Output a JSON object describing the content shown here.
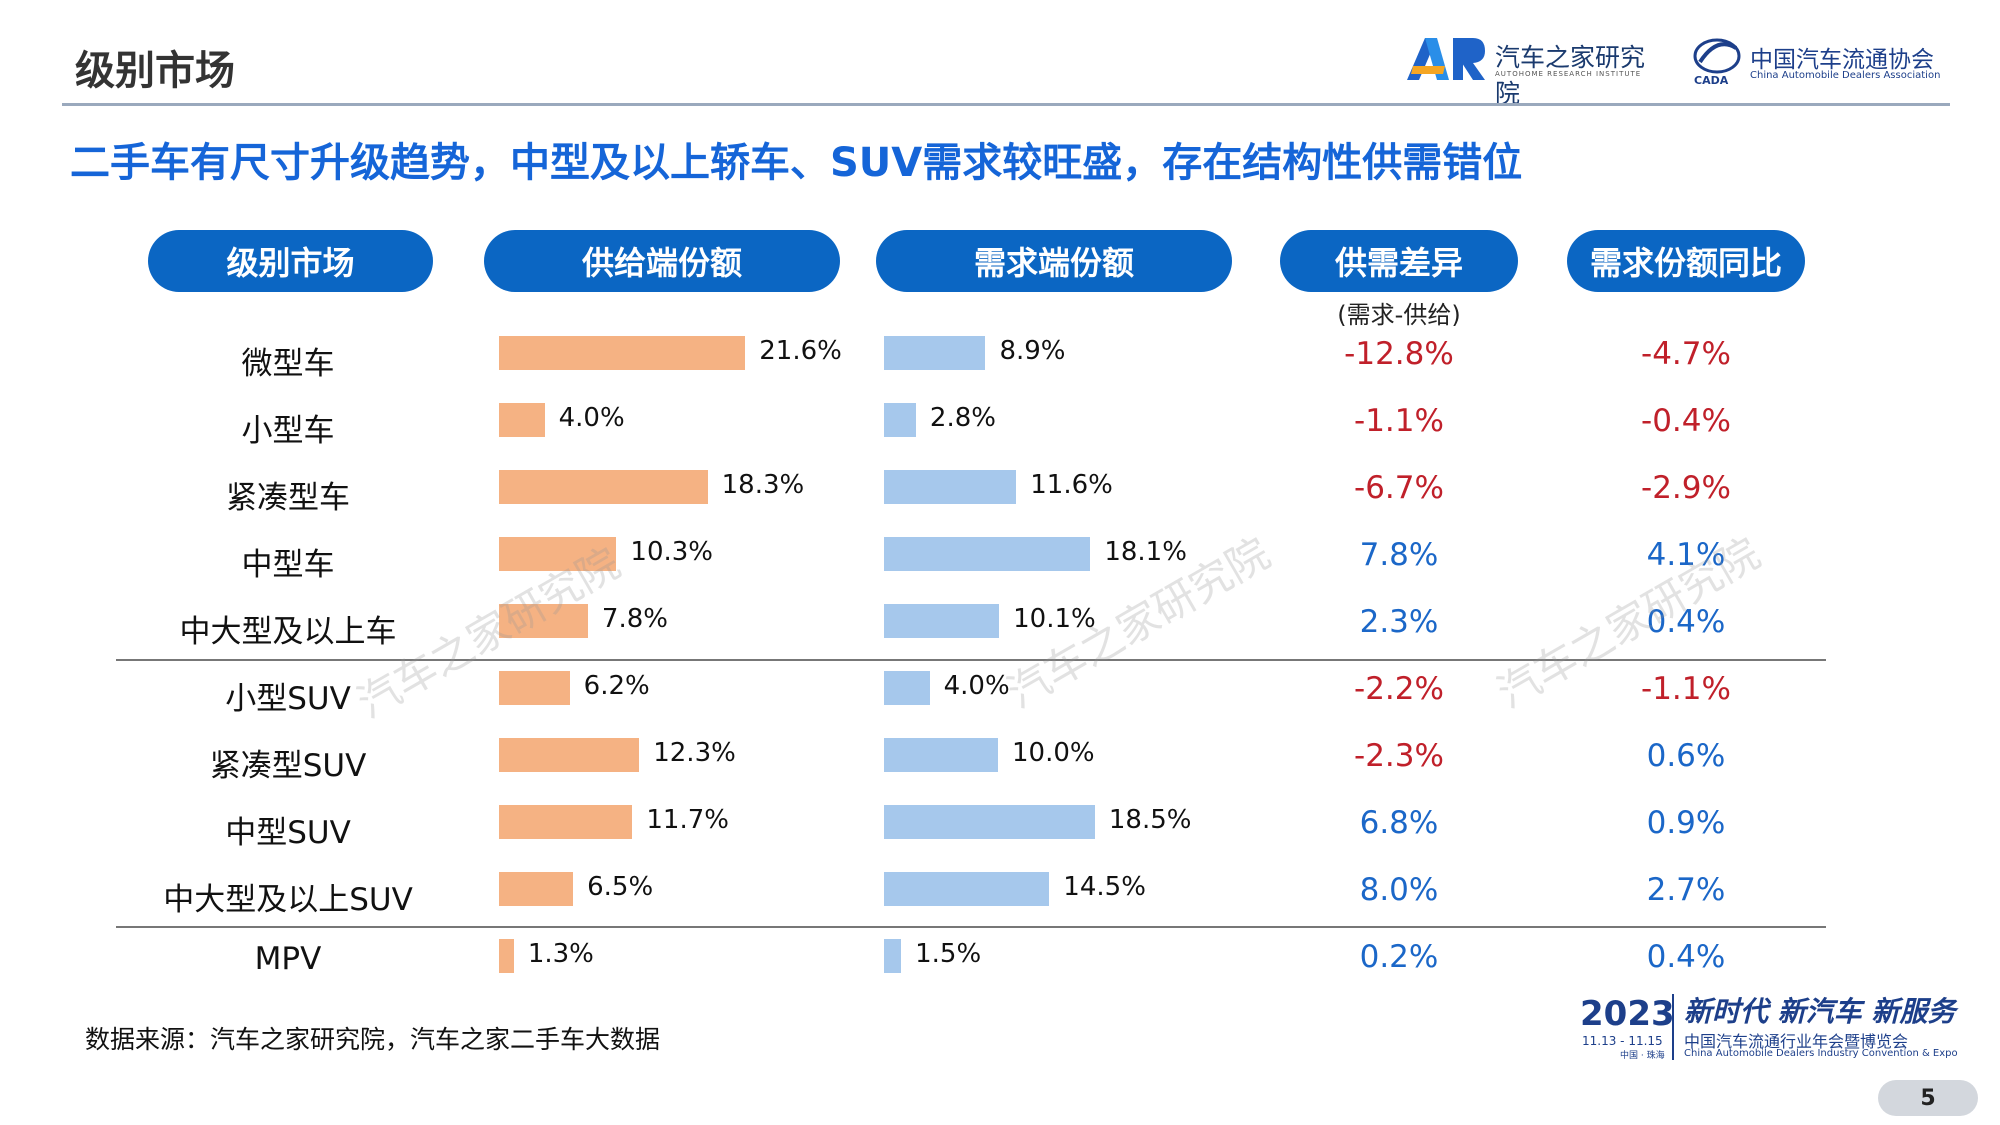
{
  "header": {
    "page_title": "级别市场",
    "logo_ar_text": "汽车之家研究院",
    "logo_ar_sub": "AUTOHOME RESEARCH INSTITUTE",
    "logo_cada_cn": "中国汽车流通协会",
    "logo_cada_en": "China Automobile Dealers Association"
  },
  "subtitle": "二手车有尺寸升级趋势，中型及以上轿车、SUV需求较旺盛，存在结构性供需错位",
  "columns": {
    "segment": "级别市场",
    "supply": "供给端份额",
    "demand": "需求端份额",
    "gap": "供需差异",
    "gap_note": "(需求-供给)",
    "demand_yoy": "需求份额同比"
  },
  "watermark": "汽车之家研究院",
  "chart_data": {
    "type": "table",
    "categories": [
      "微型车",
      "小型车",
      "紧凑型车",
      "中型车",
      "中大型及以上车",
      "小型SUV",
      "紧凑型SUV",
      "中型SUV",
      "中大型及以上SUV",
      "MPV"
    ],
    "series": [
      {
        "name": "供给端份额",
        "values": [
          21.6,
          4.0,
          18.3,
          10.3,
          7.8,
          6.2,
          12.3,
          11.7,
          6.5,
          1.3
        ],
        "labels": [
          "21.6%",
          "4.0%",
          "18.3%",
          "10.3%",
          "7.8%",
          "6.2%",
          "12.3%",
          "11.7%",
          "6.5%",
          "1.3%"
        ],
        "color": "#f5b283"
      },
      {
        "name": "需求端份额",
        "values": [
          8.9,
          2.8,
          11.6,
          18.1,
          10.1,
          4.0,
          10.0,
          18.5,
          14.5,
          1.5
        ],
        "labels": [
          "8.9%",
          "2.8%",
          "11.6%",
          "18.1%",
          "10.1%",
          "4.0%",
          "10.0%",
          "18.5%",
          "14.5%",
          "1.5%"
        ],
        "color": "#a6c8ec"
      },
      {
        "name": "供需差异",
        "values": [
          -12.8,
          -1.1,
          -6.7,
          7.8,
          2.3,
          -2.2,
          -2.3,
          6.8,
          8.0,
          0.2
        ],
        "labels": [
          "-12.8%",
          "-1.1%",
          "-6.7%",
          "7.8%",
          "2.3%",
          "-2.2%",
          "-2.3%",
          "6.8%",
          "8.0%",
          "0.2%"
        ]
      },
      {
        "name": "需求份额同比",
        "values": [
          -4.7,
          -0.4,
          -2.9,
          4.1,
          0.4,
          -1.1,
          0.6,
          0.9,
          2.7,
          0.4
        ],
        "labels": [
          "-4.7%",
          "-0.4%",
          "-2.9%",
          "4.1%",
          "0.4%",
          "-1.1%",
          "0.6%",
          "0.9%",
          "2.7%",
          "0.4%"
        ]
      }
    ],
    "negative_color": "#c0202a",
    "positive_color": "#1b67c8"
  },
  "source": "数据来源：汽车之家研究院，汽车之家二手车大数据",
  "footer": {
    "year": "2023",
    "dates": "11.13 - 11.15",
    "place": "中国 · 珠海",
    "slogan": "新时代 新汽车 新服务",
    "event_name": "中国汽车流通行业年会暨博览会",
    "event_en": "China Automobile Dealers Industry Convention & Expo",
    "page_number": "5"
  }
}
